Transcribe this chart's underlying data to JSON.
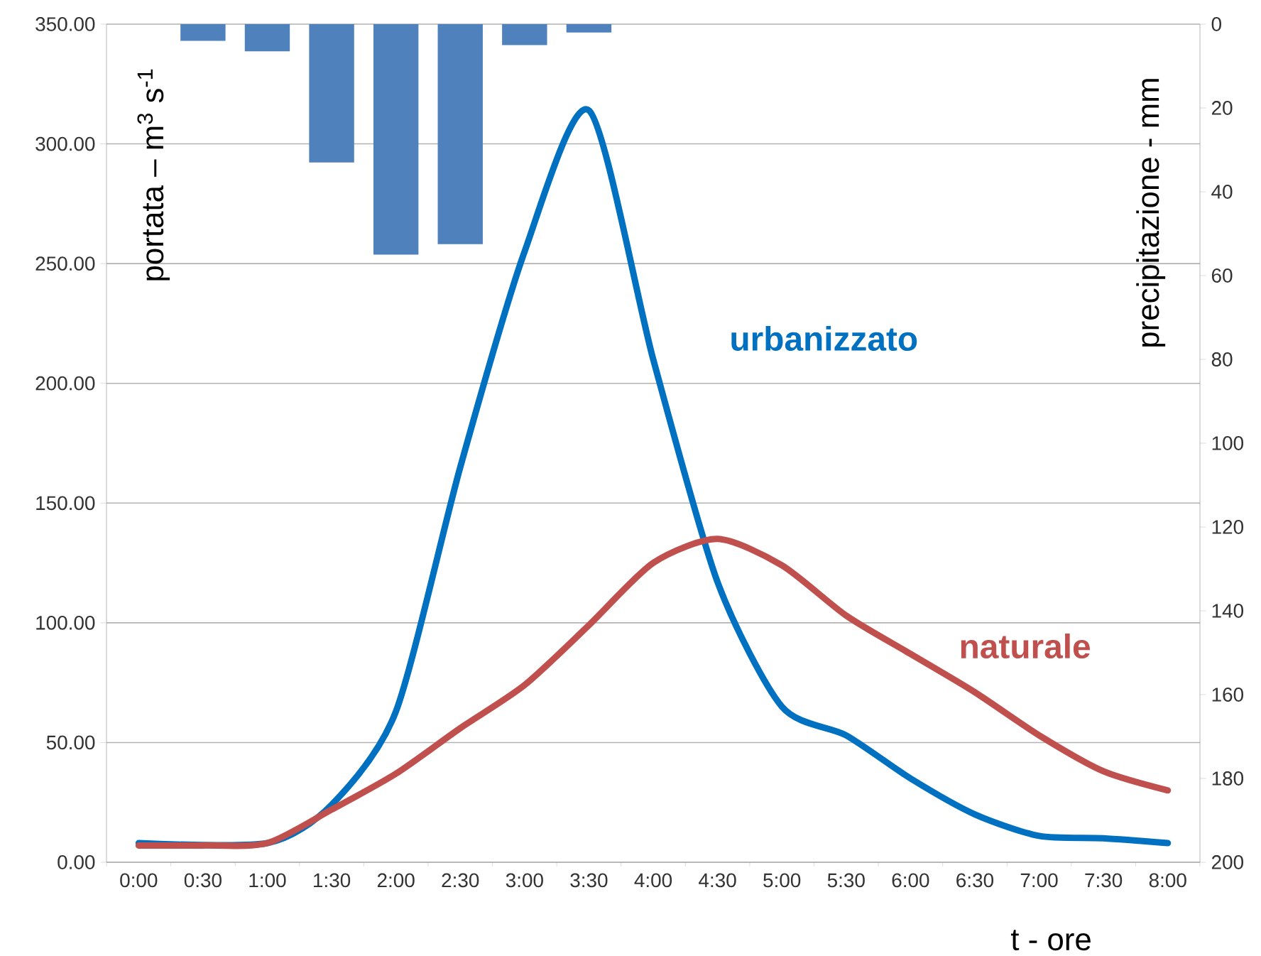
{
  "chart_data": {
    "type": "line",
    "xlabel": "t - ore",
    "ylabel": "portata – m$^{3}$ s$^{-1}$",
    "y2label": "precipitazione - mm",
    "categories": [
      "0:00",
      "0:30",
      "1:00",
      "1:30",
      "2:00",
      "2:30",
      "3:00",
      "3:30",
      "4:00",
      "4:30",
      "5:00",
      "5:30",
      "6:00",
      "6:30",
      "7:00",
      "7:30",
      "8:00"
    ],
    "series": [
      {
        "name": "urbanizzato",
        "color": "#0070c0",
        "values": [
          8,
          null,
          8,
          24,
          63,
          165,
          255,
          314,
          210,
          117,
          65,
          53,
          35,
          20,
          11,
          10,
          8
        ]
      },
      {
        "name": "naturale",
        "color": "#c0504d",
        "values": [
          7,
          7,
          8,
          22,
          37,
          56,
          74,
          99,
          125,
          135,
          124,
          103,
          87,
          71,
          53,
          38,
          30
        ]
      },
      {
        "type": "bar",
        "axis": "y2",
        "color": "#4f81bd",
        "values": [
          null,
          4,
          6.5,
          33,
          55,
          52.5,
          5,
          2,
          null,
          null,
          null,
          null,
          null,
          null,
          null,
          null,
          null
        ]
      }
    ],
    "ylim": [
      0,
      350
    ],
    "yticks": [
      {
        "value": 0,
        "label": "0.00"
      },
      {
        "value": 50,
        "label": "50.00"
      },
      {
        "value": 100,
        "label": "100.00"
      },
      {
        "value": 150,
        "label": "150.00"
      },
      {
        "value": 200,
        "label": "200.00"
      },
      {
        "value": 250,
        "label": "250.00"
      },
      {
        "value": 300,
        "label": "300.00"
      },
      {
        "value": 350,
        "label": "350.00"
      }
    ],
    "y2lim": [
      200,
      0
    ],
    "y2ticks": [
      0,
      20,
      40,
      60,
      80,
      100,
      120,
      140,
      160,
      180,
      200
    ],
    "grid": "y"
  }
}
